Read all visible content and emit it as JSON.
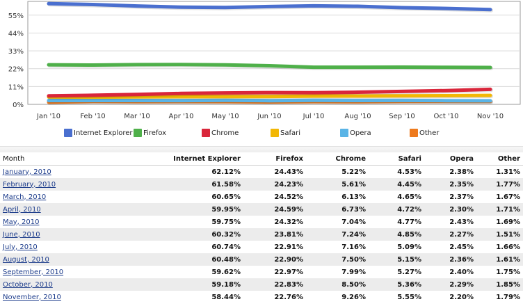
{
  "chart_data": {
    "type": "line",
    "x": [
      "Jan '10",
      "Feb '10",
      "Mar '10",
      "Apr '10",
      "May '10",
      "Jun '10",
      "Jul '10",
      "Aug '10",
      "Sep '10",
      "Oct '10",
      "Nov '10"
    ],
    "ytick_labels": [
      "0%",
      "11%",
      "22%",
      "33%",
      "44%",
      "55%"
    ],
    "ylim": [
      0,
      63.5
    ],
    "legend_placement": "bottom",
    "series": [
      {
        "name": "Internet Explorer",
        "color": "#4a6fcf",
        "values": [
          62.12,
          61.58,
          60.65,
          59.95,
          59.75,
          60.32,
          60.74,
          60.48,
          59.62,
          59.18,
          58.44
        ]
      },
      {
        "name": "Firefox",
        "color": "#4fb04a",
        "values": [
          24.43,
          24.23,
          24.52,
          24.59,
          24.32,
          23.81,
          22.91,
          22.9,
          22.97,
          22.83,
          22.76
        ]
      },
      {
        "name": "Chrome",
        "color": "#d9263b",
        "values": [
          5.22,
          5.61,
          6.13,
          6.73,
          7.04,
          7.24,
          7.16,
          7.5,
          7.99,
          8.5,
          9.26
        ]
      },
      {
        "name": "Safari",
        "color": "#f2b705",
        "values": [
          4.53,
          4.45,
          4.65,
          4.72,
          4.77,
          4.85,
          5.09,
          5.15,
          5.27,
          5.36,
          5.55
        ]
      },
      {
        "name": "Opera",
        "color": "#5ab4e6",
        "values": [
          2.38,
          2.35,
          2.37,
          2.3,
          2.43,
          2.27,
          2.45,
          2.36,
          2.4,
          2.29,
          2.2
        ]
      },
      {
        "name": "Other",
        "color": "#ee7a1d",
        "values": [
          1.31,
          1.77,
          1.67,
          1.71,
          1.69,
          1.51,
          1.66,
          1.61,
          1.75,
          1.85,
          1.79
        ]
      }
    ]
  },
  "table": {
    "headers": [
      "Month",
      "Internet Explorer",
      "Firefox",
      "Chrome",
      "Safari",
      "Opera",
      "Other"
    ],
    "rows": [
      {
        "month": "January, 2010",
        "values": [
          "62.12%",
          "24.43%",
          "5.22%",
          "4.53%",
          "2.38%",
          "1.31%"
        ]
      },
      {
        "month": "February, 2010",
        "values": [
          "61.58%",
          "24.23%",
          "5.61%",
          "4.45%",
          "2.35%",
          "1.77%"
        ]
      },
      {
        "month": "March, 2010",
        "values": [
          "60.65%",
          "24.52%",
          "6.13%",
          "4.65%",
          "2.37%",
          "1.67%"
        ]
      },
      {
        "month": "April, 2010",
        "values": [
          "59.95%",
          "24.59%",
          "6.73%",
          "4.72%",
          "2.30%",
          "1.71%"
        ]
      },
      {
        "month": "May, 2010",
        "values": [
          "59.75%",
          "24.32%",
          "7.04%",
          "4.77%",
          "2.43%",
          "1.69%"
        ]
      },
      {
        "month": "June, 2010",
        "values": [
          "60.32%",
          "23.81%",
          "7.24%",
          "4.85%",
          "2.27%",
          "1.51%"
        ]
      },
      {
        "month": "July, 2010",
        "values": [
          "60.74%",
          "22.91%",
          "7.16%",
          "5.09%",
          "2.45%",
          "1.66%"
        ]
      },
      {
        "month": "August, 2010",
        "values": [
          "60.48%",
          "22.90%",
          "7.50%",
          "5.15%",
          "2.36%",
          "1.61%"
        ]
      },
      {
        "month": "September, 2010",
        "values": [
          "59.62%",
          "22.97%",
          "7.99%",
          "5.27%",
          "2.40%",
          "1.75%"
        ]
      },
      {
        "month": "October, 2010",
        "values": [
          "59.18%",
          "22.83%",
          "8.50%",
          "5.36%",
          "2.29%",
          "1.85%"
        ]
      },
      {
        "month": "November, 2010",
        "values": [
          "58.44%",
          "22.76%",
          "9.26%",
          "5.55%",
          "2.20%",
          "1.79%"
        ]
      }
    ]
  }
}
